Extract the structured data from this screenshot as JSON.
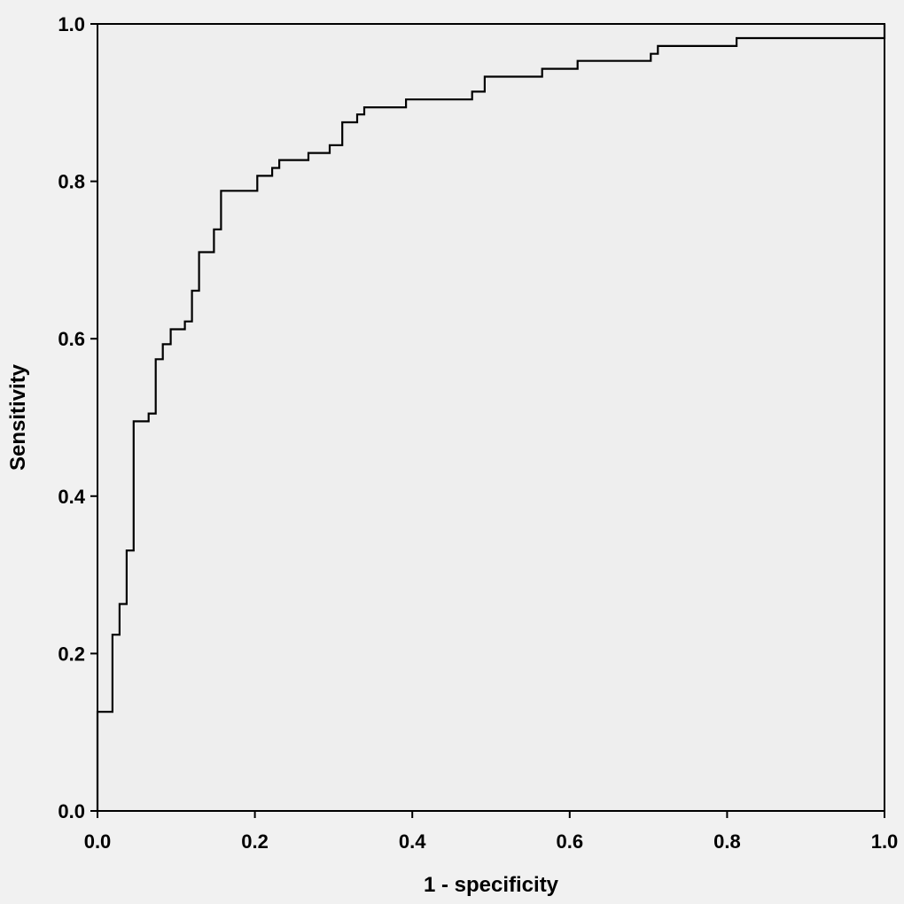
{
  "chart_data": {
    "type": "line",
    "title": "",
    "xlabel": "1 - specificity",
    "ylabel": "Sensitivity",
    "xlim": [
      0,
      1
    ],
    "ylim": [
      0,
      1
    ],
    "x_ticks": [
      "0.0",
      "0.2",
      "0.4",
      "0.6",
      "0.8",
      "1.0"
    ],
    "y_ticks": [
      "0.0",
      "0.2",
      "0.4",
      "0.6",
      "0.8",
      "1.0"
    ],
    "grid": false,
    "legend": "none",
    "colors": {
      "plot_background": "#eeeeee",
      "page_background": "#f1f1f1",
      "line": "#000000"
    },
    "series": [
      {
        "points": [
          [
            0.0,
            0.0
          ],
          [
            0.0,
            0.126
          ],
          [
            0.019,
            0.126
          ],
          [
            0.019,
            0.224
          ],
          [
            0.028,
            0.224
          ],
          [
            0.028,
            0.263
          ],
          [
            0.037,
            0.263
          ],
          [
            0.037,
            0.331
          ],
          [
            0.046,
            0.331
          ],
          [
            0.046,
            0.495
          ],
          [
            0.065,
            0.495
          ],
          [
            0.065,
            0.505
          ],
          [
            0.074,
            0.505
          ],
          [
            0.074,
            0.574
          ],
          [
            0.083,
            0.574
          ],
          [
            0.083,
            0.593
          ],
          [
            0.093,
            0.593
          ],
          [
            0.093,
            0.612
          ],
          [
            0.111,
            0.612
          ],
          [
            0.111,
            0.622
          ],
          [
            0.12,
            0.622
          ],
          [
            0.12,
            0.661
          ],
          [
            0.129,
            0.661
          ],
          [
            0.129,
            0.71
          ],
          [
            0.148,
            0.71
          ],
          [
            0.148,
            0.739
          ],
          [
            0.157,
            0.739
          ],
          [
            0.157,
            0.788
          ],
          [
            0.203,
            0.788
          ],
          [
            0.203,
            0.807
          ],
          [
            0.222,
            0.807
          ],
          [
            0.222,
            0.817
          ],
          [
            0.231,
            0.817
          ],
          [
            0.231,
            0.827
          ],
          [
            0.268,
            0.827
          ],
          [
            0.268,
            0.836
          ],
          [
            0.295,
            0.836
          ],
          [
            0.295,
            0.846
          ],
          [
            0.311,
            0.846
          ],
          [
            0.311,
            0.875
          ],
          [
            0.33,
            0.875
          ],
          [
            0.33,
            0.885
          ],
          [
            0.339,
            0.885
          ],
          [
            0.339,
            0.894
          ],
          [
            0.392,
            0.894
          ],
          [
            0.392,
            0.904
          ],
          [
            0.476,
            0.904
          ],
          [
            0.476,
            0.914
          ],
          [
            0.492,
            0.914
          ],
          [
            0.492,
            0.933
          ],
          [
            0.565,
            0.933
          ],
          [
            0.565,
            0.943
          ],
          [
            0.61,
            0.943
          ],
          [
            0.61,
            0.953
          ],
          [
            0.703,
            0.953
          ],
          [
            0.703,
            0.962
          ],
          [
            0.712,
            0.962
          ],
          [
            0.712,
            0.972
          ],
          [
            0.812,
            0.972
          ],
          [
            0.812,
            0.982
          ],
          [
            1.0,
            0.982
          ],
          [
            1.0,
            1.0
          ]
        ]
      }
    ]
  }
}
